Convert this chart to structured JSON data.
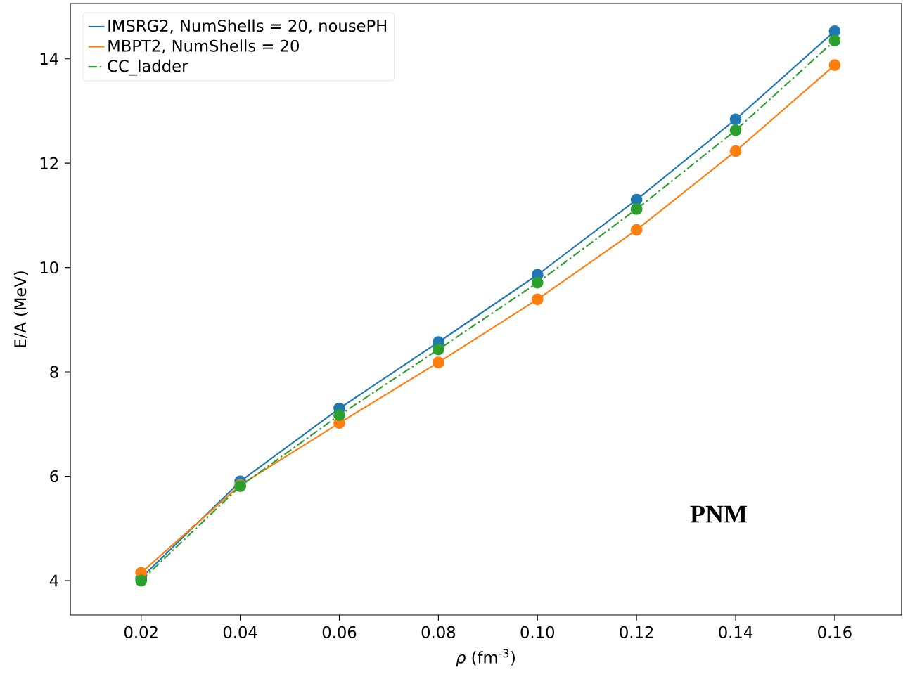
{
  "chart_data": {
    "type": "line",
    "xlabel": "*ρ* (fm$^{-3}$)",
    "ylabel": "E/A (MeV)",
    "x": [
      0.02,
      0.04,
      0.06,
      0.08,
      0.1,
      0.12,
      0.14,
      0.16
    ],
    "series": [
      {
        "name": "IMSRG2, NumShells = 20, nousePH",
        "color": "#1f77b4",
        "line_style": "solid",
        "values": [
          4.05,
          5.9,
          7.3,
          8.57,
          9.86,
          11.3,
          12.84,
          14.53
        ]
      },
      {
        "name": "MBPT2, NumShells = 20",
        "color": "#ff7f0e",
        "line_style": "solid",
        "values": [
          4.15,
          5.83,
          7.02,
          8.18,
          9.39,
          10.72,
          12.23,
          13.88
        ]
      },
      {
        "name": "CC_ladder",
        "color": "#2ca02c",
        "line_style": "dashdot",
        "values": [
          4.0,
          5.81,
          7.17,
          8.43,
          9.71,
          11.12,
          12.63,
          14.35
        ]
      }
    ],
    "xlim": [
      0.0057,
      0.1735
    ],
    "ylim": [
      3.34,
      15.06
    ],
    "xticks": [
      0.02,
      0.04,
      0.06,
      0.08,
      {
        "value": 0.1,
        "label": "0.10"
      },
      0.12,
      0.14,
      0.16
    ],
    "yticks": [
      4,
      6,
      8,
      10,
      12,
      14
    ],
    "annotations": [
      "**PNM**"
    ],
    "marker": "circle",
    "grid": false,
    "legend": "top left"
  }
}
